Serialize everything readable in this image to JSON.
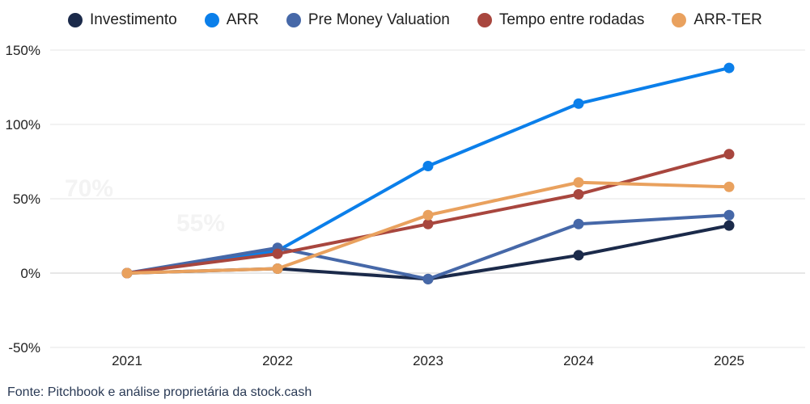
{
  "chart_data": {
    "type": "line",
    "categories": [
      "2021",
      "2022",
      "2023",
      "2024",
      "2025"
    ],
    "yticks": [
      -50,
      0,
      50,
      100,
      150
    ],
    "ytick_labels": [
      "-50%",
      "0%",
      "50%",
      "100%",
      "150%"
    ],
    "ylim": [
      -50,
      150
    ],
    "series": [
      {
        "name": "Investimento",
        "color": "#1b2a4a",
        "values": [
          0,
          3,
          -4,
          12,
          32
        ]
      },
      {
        "name": "ARR",
        "color": "#0b7fea",
        "values": [
          0,
          15,
          72,
          114,
          138
        ]
      },
      {
        "name": "Pre Money Valuation",
        "color": "#4668a8",
        "values": [
          0,
          17,
          -4,
          33,
          39
        ]
      },
      {
        "name": "Tempo entre rodadas",
        "color": "#a8463e",
        "values": [
          0,
          13,
          33,
          53,
          80
        ]
      },
      {
        "name": "ARR-TER",
        "color": "#e9a15e",
        "values": [
          0,
          3,
          39,
          61,
          58
        ]
      }
    ],
    "title": "",
    "xlabel": "",
    "ylabel": "",
    "grid": true,
    "legend": "top"
  },
  "watermarks": [
    "70%",
    "55%"
  ],
  "source": "Fonte: Pitchbook e análise proprietária da stock.cash"
}
